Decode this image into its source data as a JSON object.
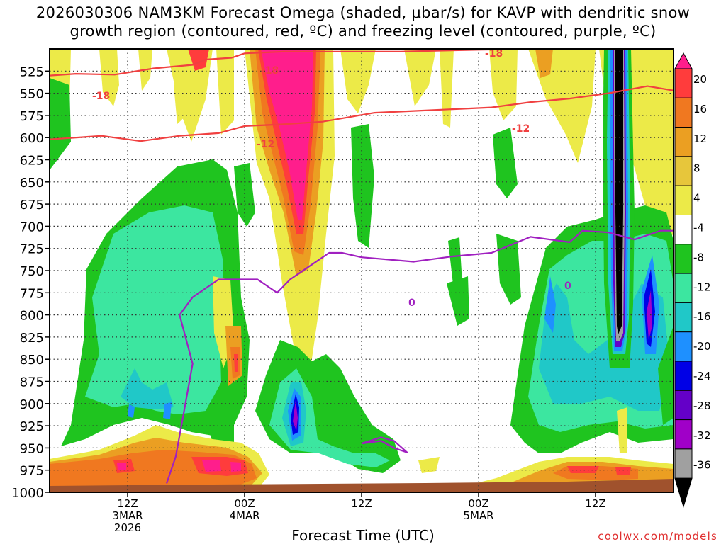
{
  "chart_data": {
    "type": "heatmap",
    "title_line1": "2026030306 NAM3KM Forecast Omega (shaded, μbar/s) for KAVP with dendritic snow",
    "title_line2": "growth region (contoured, red, ºC) and freezing level (contoured, purple, ºC)",
    "xlabel": "Forecast Time (UTC)",
    "credit": "coolwx.com/models",
    "y_ticks": [
      525,
      550,
      575,
      600,
      625,
      650,
      675,
      700,
      725,
      750,
      775,
      800,
      825,
      850,
      875,
      900,
      925,
      950,
      975,
      1000
    ],
    "ylim_hpa": [
      500,
      1000
    ],
    "xlim_hours": [
      3,
      51
    ],
    "x_ticks": [
      {
        "hour": 9,
        "line1": "12Z",
        "line2": "3MAR",
        "line3": "2026"
      },
      {
        "hour": 18,
        "line1": "00Z",
        "line2": "4MAR",
        "line3": ""
      },
      {
        "hour": 27,
        "line1": "12Z",
        "line2": "",
        "line3": ""
      },
      {
        "hour": 36,
        "line1": "00Z",
        "line2": "5MAR",
        "line3": ""
      },
      {
        "hour": 45,
        "line1": "12Z",
        "line2": "",
        "line3": ""
      }
    ],
    "colorbar": {
      "labels": [
        "20",
        "16",
        "12",
        "8",
        "4",
        "-4",
        "-8",
        "-12",
        "-16",
        "-20",
        "-24",
        "-28",
        "-32",
        "-36"
      ],
      "colors": [
        "#ff1e8c",
        "#ff3c3c",
        "#f07820",
        "#eb9f22",
        "#e7c63b",
        "#ecea48",
        "#ffffff",
        "#1fc41f",
        "#3ce6a0",
        "#20c8c8",
        "#1e90ff",
        "#0000e6",
        "#6400c8",
        "#a000c8",
        "#a0a0a0",
        "#000000"
      ]
    },
    "contour_labels": {
      "t18": "-18",
      "t12": "-12",
      "t0": "0"
    },
    "series": [
      {
        "name": "-18 C isotherm",
        "color": "#f04040",
        "points": [
          [
            3,
            530
          ],
          [
            5,
            528
          ],
          [
            8,
            529
          ],
          [
            11,
            522
          ],
          [
            14,
            518
          ],
          [
            15,
            512
          ],
          [
            17,
            510
          ],
          [
            18,
            505
          ],
          [
            21,
            503
          ],
          [
            25,
            503
          ],
          [
            30,
            503
          ],
          [
            33,
            502
          ],
          [
            36,
            501
          ],
          [
            40,
            500
          ],
          [
            45,
            500
          ],
          [
            48,
            498
          ],
          [
            51,
            498
          ]
        ]
      },
      {
        "name": "-12 C isotherm",
        "color": "#f04040",
        "points": [
          [
            3,
            602
          ],
          [
            7,
            598
          ],
          [
            10,
            604
          ],
          [
            13,
            598
          ],
          [
            16,
            595
          ],
          [
            18,
            587
          ],
          [
            21,
            585
          ],
          [
            24,
            582
          ],
          [
            26,
            577
          ],
          [
            28,
            572
          ],
          [
            31,
            570
          ],
          [
            34,
            568
          ],
          [
            37,
            566
          ],
          [
            40,
            560
          ],
          [
            43,
            556
          ],
          [
            46,
            550
          ],
          [
            49,
            542
          ],
          [
            51,
            547
          ]
        ]
      },
      {
        "name": "0 C freezing level",
        "color": "#a020c0",
        "points": [
          [
            12,
            990
          ],
          [
            12.7,
            960
          ],
          [
            13.2,
            920
          ],
          [
            14,
            855
          ],
          [
            13,
            800
          ],
          [
            14,
            780
          ],
          [
            16,
            760
          ],
          [
            19,
            760
          ],
          [
            20.5,
            775
          ],
          [
            21.5,
            760
          ],
          [
            23,
            745
          ],
          [
            24.5,
            730
          ],
          [
            25.5,
            730
          ],
          [
            27,
            735
          ],
          [
            31,
            740
          ],
          [
            34,
            734
          ],
          [
            37,
            730
          ],
          [
            40,
            712
          ],
          [
            43,
            718
          ],
          [
            44,
            705
          ],
          [
            46,
            707
          ],
          [
            48,
            715
          ],
          [
            50,
            705
          ],
          [
            51,
            705
          ]
        ]
      },
      {
        "name": "0 C freezing level (low loop)",
        "color": "#a020c0",
        "points": [
          [
            27,
            945
          ],
          [
            28.5,
            938
          ],
          [
            29.5,
            942
          ],
          [
            30.5,
            955
          ],
          [
            29.5,
            950
          ],
          [
            28.5,
            942
          ],
          [
            27,
            945
          ]
        ]
      }
    ],
    "omega_regions_note": "Shaded omega field: upward motion (negative, green to black) in mid levels early and late; strong sinking (positive, pink) aloft near 00Z 4MAR; warm shallow layer near 950 hPa."
  }
}
